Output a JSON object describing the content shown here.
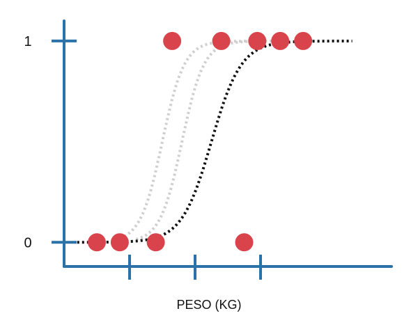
{
  "chart_data": {
    "type": "scatter",
    "title": "",
    "xlabel": "PESO (KG)",
    "ylabel": "",
    "xlim": [
      0,
      100
    ],
    "ylim": [
      -0.12,
      1.1
    ],
    "grid": false,
    "y_ticks": [
      {
        "value": 0,
        "label": "0"
      },
      {
        "value": 1,
        "label": "1"
      }
    ],
    "x_ticks": [
      {
        "value": 20,
        "label": ""
      },
      {
        "value": 40,
        "label": ""
      },
      {
        "value": 60,
        "label": ""
      }
    ],
    "points": [
      {
        "x": 10,
        "y": 0
      },
      {
        "x": 17,
        "y": 0
      },
      {
        "x": 28,
        "y": 0
      },
      {
        "x": 55,
        "y": 0
      },
      {
        "x": 33,
        "y": 1
      },
      {
        "x": 48,
        "y": 1
      },
      {
        "x": 59,
        "y": 1
      },
      {
        "x": 66,
        "y": 1
      },
      {
        "x": 73,
        "y": 1
      }
    ],
    "curves": [
      {
        "style": "dotted-light",
        "midpoint": 30,
        "steepness": 0.3,
        "x_range": [
          17,
          60
        ]
      },
      {
        "style": "dotted-light",
        "midpoint": 36,
        "steepness": 0.3,
        "x_range": [
          22,
          68
        ]
      },
      {
        "style": "dotted-dark",
        "midpoint": 45,
        "steepness": 0.22,
        "x_range": [
          4,
          88
        ]
      }
    ],
    "colors": {
      "axis": "#2b72a8",
      "point": "#d9444c",
      "curve_dark": "#111111",
      "curve_light": "#cfcfcf"
    }
  }
}
